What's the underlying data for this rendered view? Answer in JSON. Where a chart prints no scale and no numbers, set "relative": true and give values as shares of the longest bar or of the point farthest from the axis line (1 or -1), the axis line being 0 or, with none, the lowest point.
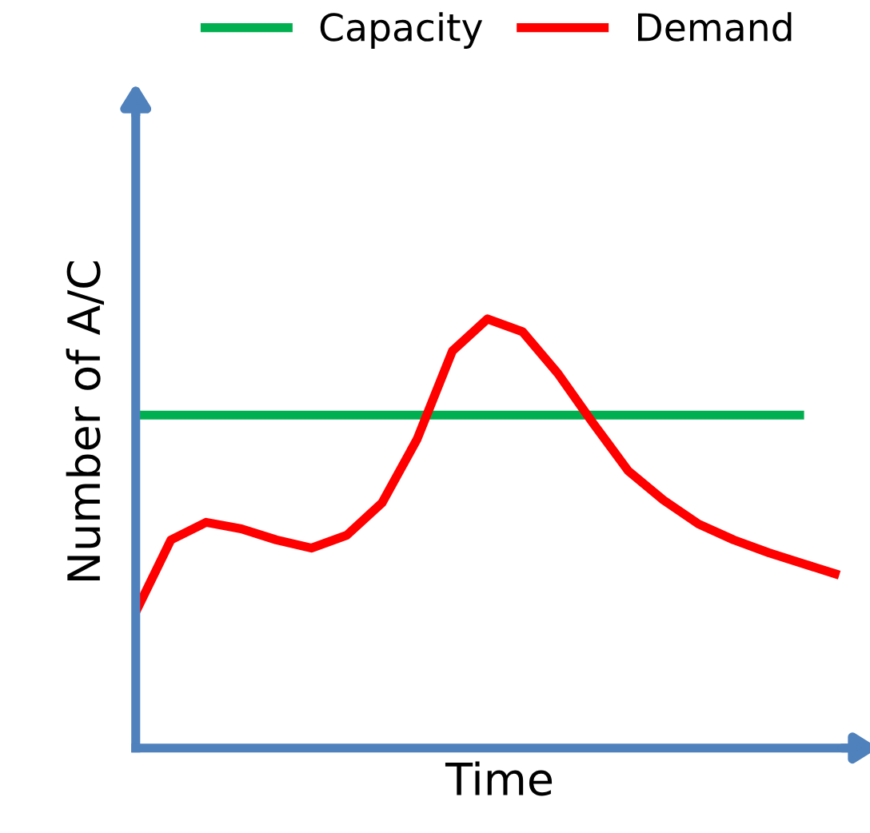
{
  "chart_data": {
    "type": "line",
    "relative": true,
    "xlabel": "Time",
    "ylabel": "Number of A/C",
    "categories": [
      null,
      null,
      null,
      null,
      null,
      null,
      null,
      null,
      null,
      null,
      null,
      null,
      null,
      null,
      null,
      null,
      null,
      null,
      null,
      null,
      null
    ],
    "series": [
      {
        "name": "Capacity",
        "color": "#00b050",
        "values": [
          0.776,
          0.776,
          0.776,
          0.776,
          0.776,
          0.776,
          0.776,
          0.776,
          0.776,
          0.776,
          0.776,
          0.776,
          0.776,
          0.776,
          0.776,
          0.776,
          0.776,
          0.776,
          0.776,
          0.776,
          null
        ]
      },
      {
        "name": "Demand",
        "color": "#ff0000",
        "values": [
          0.317,
          0.485,
          0.526,
          0.511,
          0.485,
          0.466,
          0.496,
          0.571,
          0.72,
          0.925,
          1,
          0.97,
          0.873,
          0.757,
          0.646,
          0.578,
          0.522,
          0.485,
          0.455,
          0.429,
          0.403
        ]
      }
    ],
    "legend": "top",
    "marker": "none",
    "line_style": "solid"
  }
}
